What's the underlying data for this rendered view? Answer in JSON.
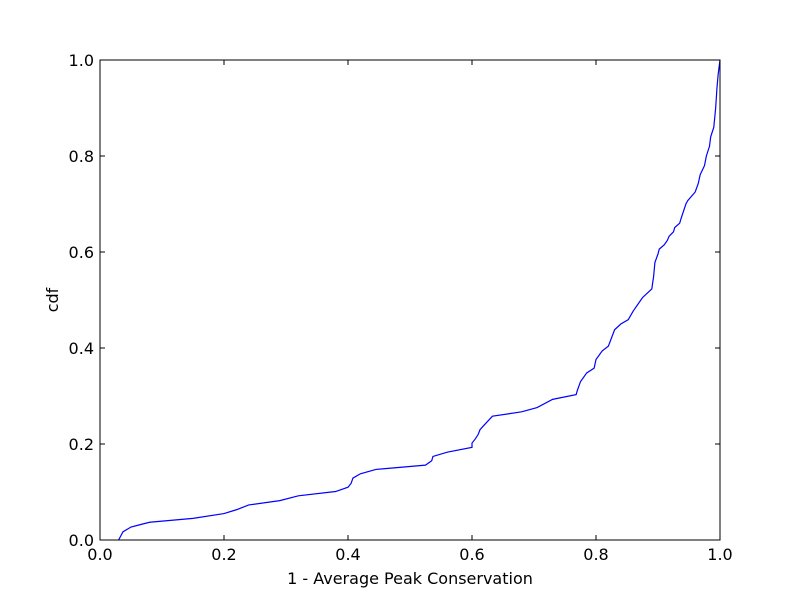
{
  "chart_data": {
    "type": "line",
    "title": "",
    "xlabel": "1 - Average Peak Conservation",
    "ylabel": "cdf",
    "xlim": [
      0.0,
      1.0
    ],
    "ylim": [
      0.0,
      1.0
    ],
    "xticks": [
      "0.0",
      "0.2",
      "0.4",
      "0.6",
      "0.8",
      "1.0"
    ],
    "yticks": [
      "0.0",
      "0.2",
      "0.4",
      "0.6",
      "0.8",
      "1.0"
    ],
    "grid": false,
    "line_color": "#0000ff",
    "series": [
      {
        "x": [
          0.03,
          0.037,
          0.05,
          0.065,
          0.08,
          0.15,
          0.2,
          0.22,
          0.24,
          0.29,
          0.32,
          0.38,
          0.4,
          0.405,
          0.408,
          0.42,
          0.445,
          0.525,
          0.535,
          0.537,
          0.56,
          0.6,
          0.6,
          0.605,
          0.61,
          0.613,
          0.62,
          0.633,
          0.68,
          0.705,
          0.73,
          0.768,
          0.77,
          0.775,
          0.785,
          0.797,
          0.8,
          0.81,
          0.82,
          0.83,
          0.84,
          0.852,
          0.86,
          0.875,
          0.89,
          0.893,
          0.895,
          0.9,
          0.902,
          0.91,
          0.915,
          0.918,
          0.925,
          0.927,
          0.935,
          0.937,
          0.945,
          0.948,
          0.96,
          0.965,
          0.968,
          0.975,
          0.978,
          0.983,
          0.985,
          0.99,
          0.993,
          0.995,
          0.997,
          1.0
        ],
        "y": [
          0.0,
          0.017,
          0.027,
          0.032,
          0.037,
          0.045,
          0.055,
          0.063,
          0.073,
          0.082,
          0.092,
          0.101,
          0.11,
          0.118,
          0.129,
          0.138,
          0.147,
          0.156,
          0.165,
          0.174,
          0.183,
          0.193,
          0.202,
          0.21,
          0.22,
          0.23,
          0.24,
          0.258,
          0.267,
          0.276,
          0.293,
          0.303,
          0.312,
          0.33,
          0.348,
          0.358,
          0.376,
          0.394,
          0.404,
          0.438,
          0.45,
          0.459,
          0.477,
          0.505,
          0.523,
          0.55,
          0.578,
          0.596,
          0.606,
          0.615,
          0.624,
          0.633,
          0.642,
          0.651,
          0.66,
          0.669,
          0.7,
          0.707,
          0.725,
          0.743,
          0.761,
          0.78,
          0.8,
          0.82,
          0.84,
          0.86,
          0.9,
          0.94,
          0.97,
          1.0
        ]
      }
    ]
  }
}
